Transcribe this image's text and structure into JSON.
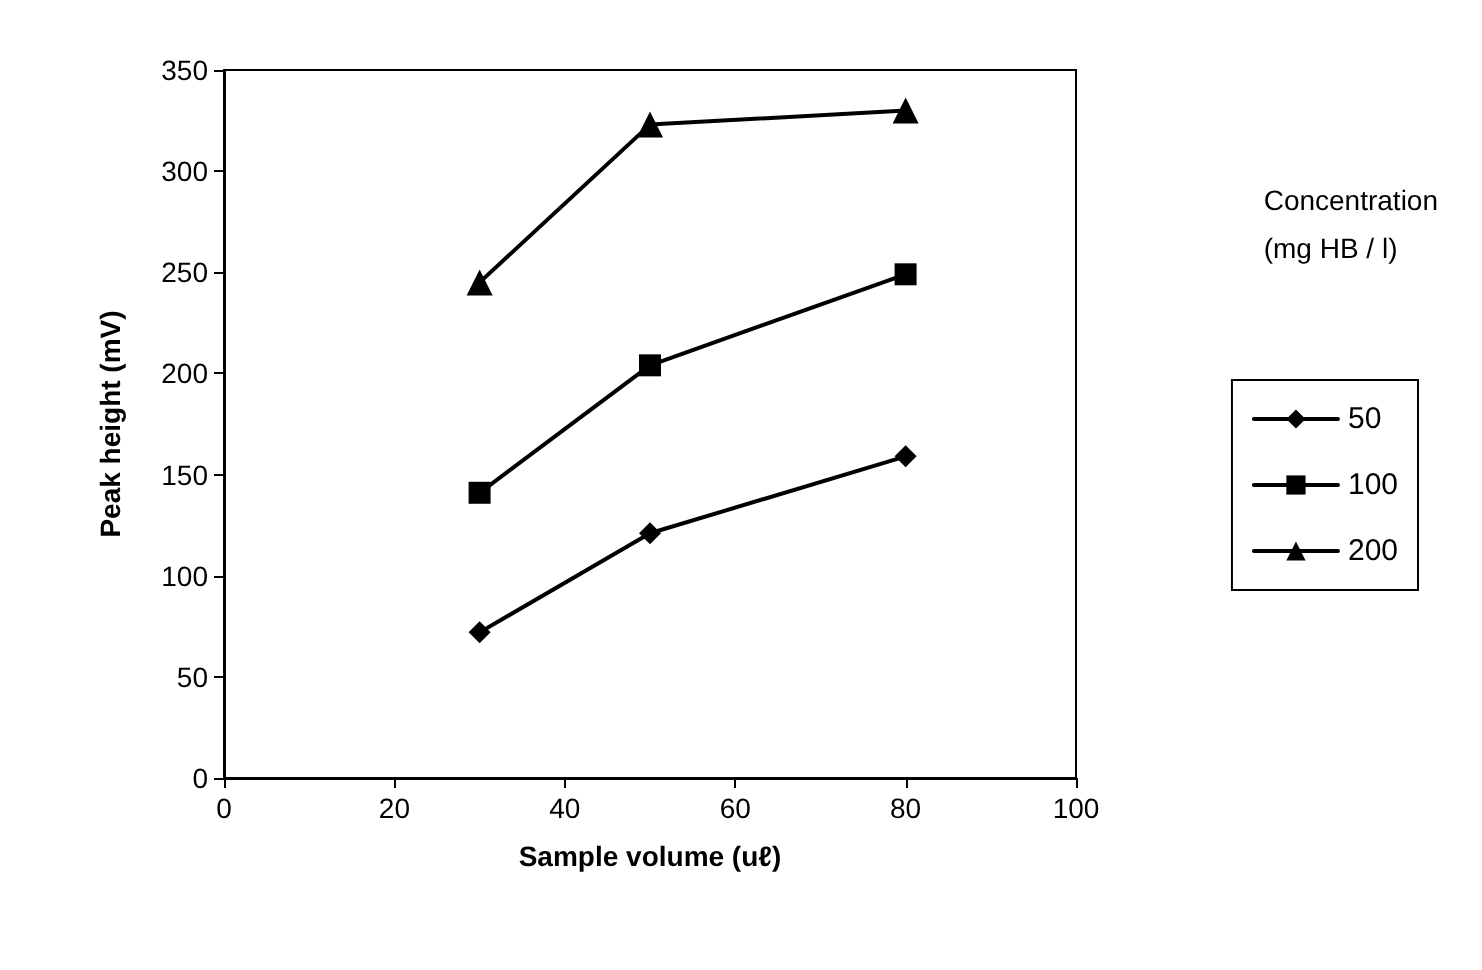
{
  "chart_data": {
    "type": "line",
    "xlabel": "Sample volume (uℓ)",
    "ylabel": "Peak height (mV)",
    "legend_title": "Concentration\n(mg HB / l)",
    "x": [
      30,
      50,
      80
    ],
    "series": [
      {
        "name": "50",
        "color": "#000000",
        "marker": "diamond",
        "values": [
          72,
          121,
          159
        ]
      },
      {
        "name": "100",
        "color": "#000000",
        "marker": "square",
        "values": [
          141,
          204,
          249
        ]
      },
      {
        "name": "200",
        "color": "#000000",
        "marker": "triangle",
        "values": [
          245,
          323,
          330
        ]
      }
    ],
    "xlim": [
      0,
      100
    ],
    "xticks": [
      0,
      20,
      40,
      60,
      80,
      100
    ],
    "ylim": [
      0,
      350
    ],
    "yticks": [
      0,
      50,
      100,
      150,
      200,
      250,
      300,
      350
    ],
    "grid": false,
    "legend": "right",
    "line_style": "solid"
  }
}
